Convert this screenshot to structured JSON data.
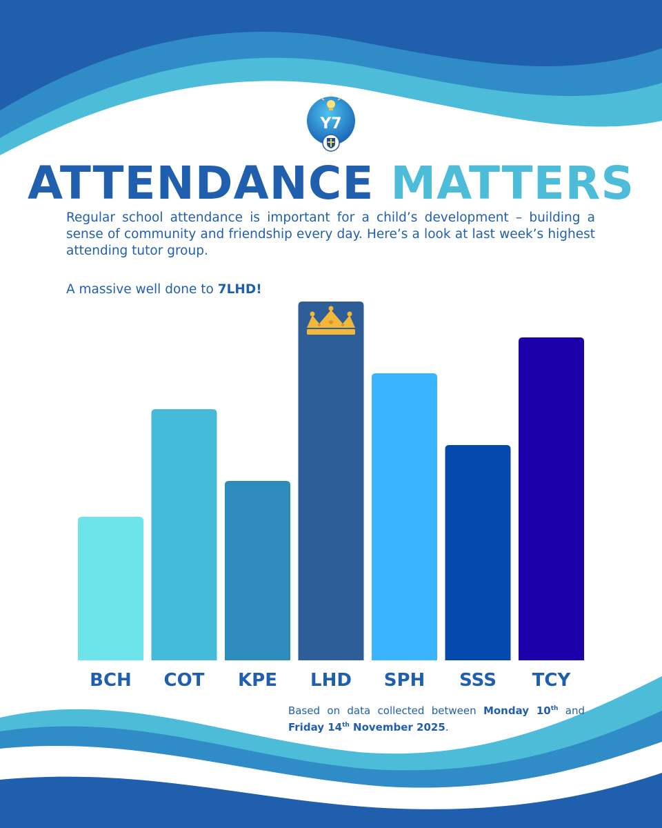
{
  "logo": {
    "text": "Y7"
  },
  "title": {
    "part1": "ATTENDANCE",
    "part2": "MATTERS"
  },
  "intro": "Regular school attendance is important for a child’s development – building a sense of community and friendship every day. Here’s a look at last week’s highest attending tutor group.",
  "well_done": {
    "prefix": "A massive well done to ",
    "group": "7LHD!"
  },
  "footnote": {
    "prefix": "Based on data collected between ",
    "start_day": "Monday 10",
    "start_sup": "th",
    "middle": " and ",
    "end_day": "Friday 14",
    "end_sup": "th",
    "end_rest": " November 2025",
    "suffix": "."
  },
  "colors": {
    "title_dark": "#1f5fae",
    "title_light": "#4cbcd9",
    "wave_dark": "#1f5fae",
    "wave_mid": "#2f8cc6",
    "wave_light": "#4cbcd9",
    "crown": "#f3b83a"
  },
  "chart_data": {
    "type": "bar",
    "title": "",
    "xlabel": "",
    "ylabel": "",
    "categories": [
      "BCH",
      "COT",
      "KPE",
      "LHD",
      "SPH",
      "SSS",
      "TCY"
    ],
    "values": [
      40,
      70,
      50,
      100,
      80,
      60,
      90
    ],
    "value_unit": "relative height (no axis shown)",
    "ylim": [
      0,
      100
    ],
    "highlight": "LHD",
    "highlight_icon": "crown-icon",
    "colors": [
      "#6de4ea",
      "#45bad9",
      "#2e8cbc",
      "#2e5e98",
      "#3ab4ff",
      "#0348ad",
      "#1c00aa"
    ],
    "grid": false,
    "legend": "none"
  }
}
